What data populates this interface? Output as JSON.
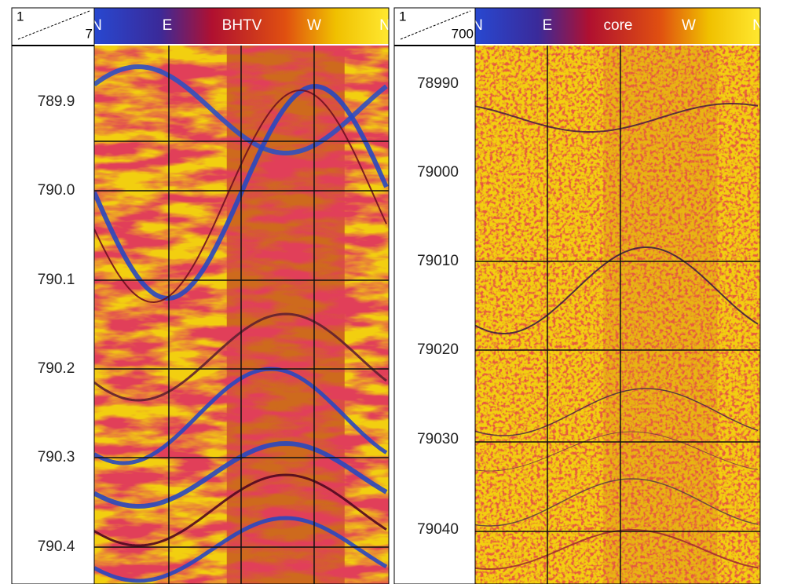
{
  "panels": [
    {
      "corner_top": "1",
      "corner_bottom": "7",
      "header_labels": [
        "N",
        "E",
        "BHTV",
        "W",
        "N"
      ],
      "depths": [
        "789.9",
        "790.0",
        "790.1",
        "790.2",
        "790.3",
        "790.4"
      ]
    },
    {
      "corner_top": "1",
      "corner_bottom": "700",
      "header_labels": [
        "N",
        "E",
        "core",
        "W",
        "N"
      ],
      "depths": [
        "78990",
        "79000",
        "79010",
        "79020",
        "79030",
        "79040"
      ]
    }
  ]
}
